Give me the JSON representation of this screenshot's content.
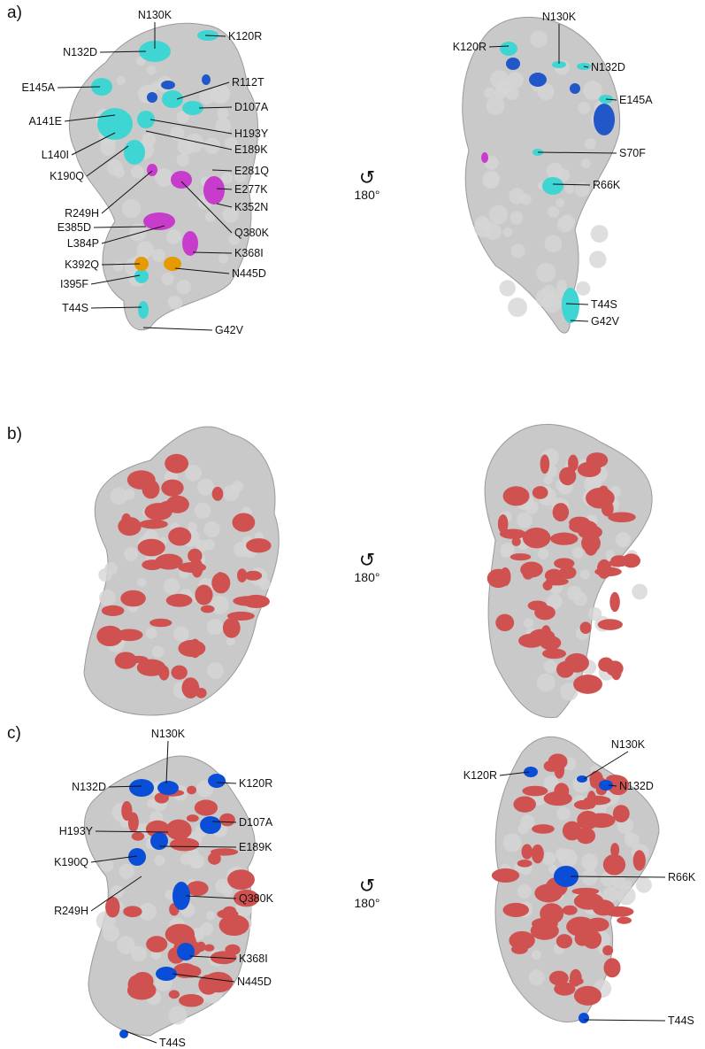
{
  "panels": [
    {
      "id": "a",
      "title": "a)",
      "left_labels": [
        "N130K",
        "K120R",
        "N132D",
        "R112T",
        "E145A",
        "D107A",
        "H193Y",
        "A141E",
        "E189K",
        "L140I",
        "K190Q",
        "E281Q",
        "E277K",
        "R249H",
        "K352N",
        "E385D",
        "Q380K",
        "L384P",
        "K368I",
        "K392Q",
        "N445D",
        "I395F",
        "T44S",
        "G42V"
      ],
      "right_labels": [
        "N130K",
        "K120R",
        "N132D",
        "E145A",
        "S70F",
        "R66K",
        "T44S",
        "G42V"
      ],
      "rotation": "180°"
    },
    {
      "id": "b",
      "title": "b)",
      "left_labels": [],
      "right_labels": [],
      "rotation": "180°"
    },
    {
      "id": "c",
      "title": "c)",
      "left_labels": [
        "N130K",
        "N132D",
        "K120R",
        "H193Y",
        "D107A",
        "E189K",
        "K190Q",
        "R249H",
        "Q380K",
        "K368I",
        "N445D",
        "T44S"
      ],
      "right_labels": [
        "N130K",
        "K120R",
        "N132D",
        "R66K",
        "T44S"
      ],
      "rotation": "180°"
    }
  ],
  "colors": {
    "surface": "#c9c9c9",
    "cyan": "#3fd5d2",
    "blue": "#2157c9",
    "magenta": "#c83ccc",
    "orange": "#e59a00",
    "red": "#cf5250",
    "mut_blue": "#0a4ed8"
  },
  "icons": {
    "rotation": "rotate-180-icon"
  }
}
